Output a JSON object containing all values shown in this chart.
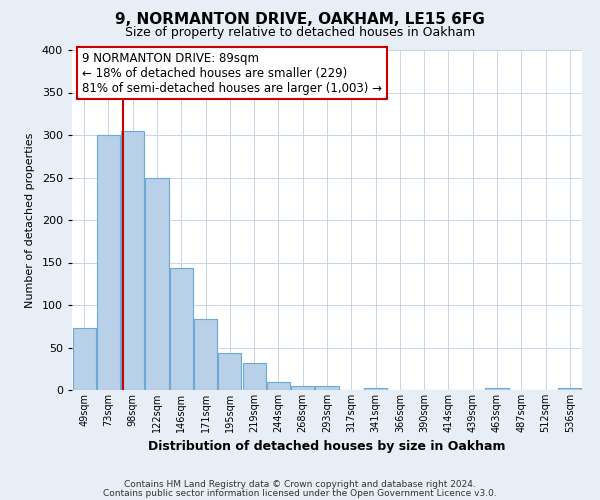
{
  "title": "9, NORMANTON DRIVE, OAKHAM, LE15 6FG",
  "subtitle": "Size of property relative to detached houses in Oakham",
  "xlabel": "Distribution of detached houses by size in Oakham",
  "ylabel": "Number of detached properties",
  "bar_labels": [
    "49sqm",
    "73sqm",
    "98sqm",
    "122sqm",
    "146sqm",
    "171sqm",
    "195sqm",
    "219sqm",
    "244sqm",
    "268sqm",
    "293sqm",
    "317sqm",
    "341sqm",
    "366sqm",
    "390sqm",
    "414sqm",
    "439sqm",
    "463sqm",
    "487sqm",
    "512sqm",
    "536sqm"
  ],
  "bar_values": [
    73,
    300,
    305,
    249,
    144,
    83,
    44,
    32,
    10,
    5,
    5,
    0,
    2,
    0,
    0,
    0,
    0,
    2,
    0,
    0,
    2
  ],
  "bar_color": "#b8d0e8",
  "bar_edge_color": "#6aaad4",
  "property_line_x": 1.62,
  "property_line_color": "#cc0000",
  "ylim": [
    0,
    400
  ],
  "yticks": [
    0,
    50,
    100,
    150,
    200,
    250,
    300,
    350,
    400
  ],
  "annotation_line1": "9 NORMANTON DRIVE: 89sqm",
  "annotation_line2": "← 18% of detached houses are smaller (229)",
  "annotation_line3": "81% of semi-detached houses are larger (1,003) →",
  "annotation_box_color": "#cc0000",
  "footer_line1": "Contains HM Land Registry data © Crown copyright and database right 2024.",
  "footer_line2": "Contains public sector information licensed under the Open Government Licence v3.0.",
  "bg_color": "#e8eef5",
  "plot_bg_color": "#ffffff",
  "grid_color": "#c8d4e8"
}
